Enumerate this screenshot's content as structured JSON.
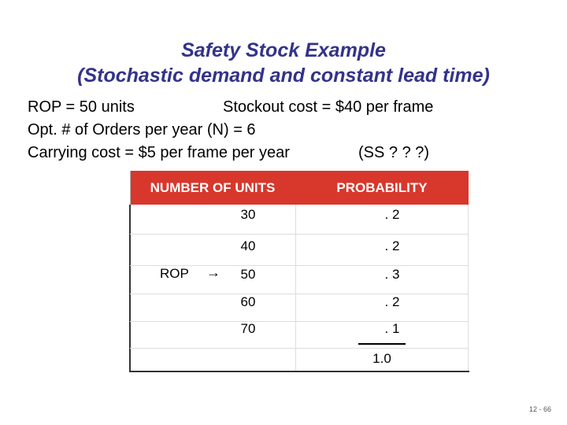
{
  "header": {
    "title_line_1": "Safety Stock Example",
    "title_line_2": "(Stochastic demand and constant lead time)"
  },
  "info": {
    "rop": "ROP = 50 units",
    "stockout_cost": "Stockout cost = $40 per frame",
    "orders": "Opt. # of Orders per year (N) = 6",
    "carrying_cost": "Carrying cost = $5 per frame per year",
    "ss": "(SS ? ? ?)"
  },
  "table": {
    "columns": [
      "NUMBER OF UNITS",
      "PROBABILITY"
    ],
    "rows": [
      [
        "30",
        ". 2"
      ],
      [
        "40",
        ". 2"
      ],
      [
        "50",
        ". 3"
      ],
      [
        "60",
        ". 2"
      ],
      [
        "70",
        ". 1"
      ]
    ],
    "total": "1.0",
    "rop_marker": "ROP"
  },
  "footer": {
    "page": "12 - 66"
  }
}
